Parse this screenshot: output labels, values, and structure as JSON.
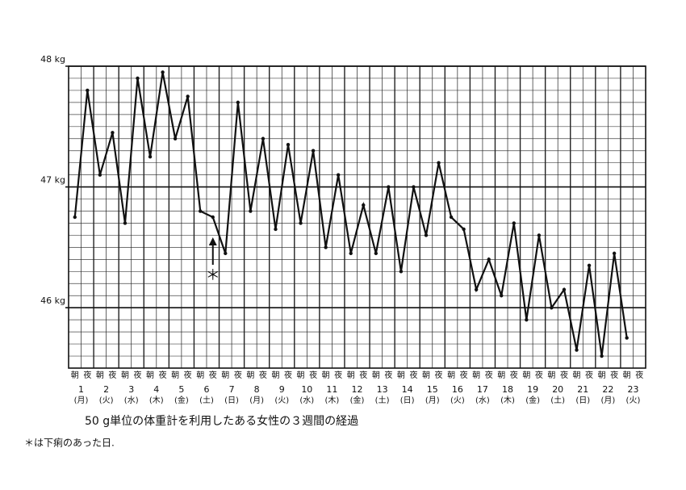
{
  "chart_data": {
    "type": "line",
    "caption": "50 g単位の体重計を利用したある女性の３週間の経過",
    "note": "＊は下痢のあった日.",
    "annotation": "＊",
    "categories": [
      "朝",
      "夜",
      "朝",
      "夜",
      "朝",
      "夜",
      "朝",
      "夜",
      "朝",
      "夜",
      "朝",
      "夜",
      "朝",
      "夜",
      "朝",
      "夜",
      "朝",
      "夜",
      "朝",
      "夜",
      "朝",
      "夜",
      "朝",
      "夜",
      "朝",
      "夜",
      "朝",
      "夜",
      "朝",
      "夜",
      "朝",
      "夜",
      "朝",
      "夜",
      "朝",
      "夜",
      "朝",
      "夜",
      "朝",
      "夜",
      "朝",
      "夜",
      "朝",
      "夜",
      "朝",
      "夜"
    ],
    "days": [
      {
        "day": "1",
        "weekday": "(月)"
      },
      {
        "day": "2",
        "weekday": "(火)"
      },
      {
        "day": "3",
        "weekday": "(水)"
      },
      {
        "day": "4",
        "weekday": "(木)"
      },
      {
        "day": "5",
        "weekday": "(金)"
      },
      {
        "day": "6",
        "weekday": "(土)"
      },
      {
        "day": "7",
        "weekday": "(日)"
      },
      {
        "day": "8",
        "weekday": "(月)"
      },
      {
        "day": "9",
        "weekday": "(火)"
      },
      {
        "day": "10",
        "weekday": "(水)"
      },
      {
        "day": "11",
        "weekday": "(木)"
      },
      {
        "day": "12",
        "weekday": "(金)"
      },
      {
        "day": "13",
        "weekday": "(土)"
      },
      {
        "day": "14",
        "weekday": "(日)"
      },
      {
        "day": "15",
        "weekday": "(月)"
      },
      {
        "day": "16",
        "weekday": "(火)"
      },
      {
        "day": "17",
        "weekday": "(水)"
      },
      {
        "day": "18",
        "weekday": "(木)"
      },
      {
        "day": "19",
        "weekday": "(金)"
      },
      {
        "day": "20",
        "weekday": "(土)"
      },
      {
        "day": "21",
        "weekday": "(日)"
      },
      {
        "day": "22",
        "weekday": "(月)"
      },
      {
        "day": "23",
        "weekday": "(火)"
      }
    ],
    "series": [
      {
        "color": "#111111",
        "values": [
          46.75,
          47.8,
          47.1,
          47.45,
          46.7,
          47.9,
          47.25,
          47.95,
          47.4,
          47.75,
          46.8,
          46.75,
          46.45,
          47.7,
          46.8,
          47.4,
          46.65,
          47.35,
          46.7,
          47.3,
          46.5,
          47.1,
          46.45,
          46.85,
          46.45,
          47.0,
          46.3,
          47.0,
          46.6,
          47.2,
          46.75,
          46.65,
          46.15,
          46.4,
          46.1,
          46.7,
          45.9,
          46.6,
          46.0,
          46.15,
          45.65,
          46.35,
          45.6,
          46.45,
          45.75,
          null
        ]
      }
    ],
    "ylim": [
      45.5,
      48
    ],
    "yticks": [
      {
        "value": 46,
        "label": "46 kg"
      },
      {
        "value": 47,
        "label": "47 kg"
      },
      {
        "value": 48,
        "label": "48 kg"
      }
    ],
    "minor_yticks": [
      45.6,
      45.7,
      45.8,
      45.9,
      46.1,
      46.2,
      46.3,
      46.4,
      46.5,
      46.6,
      46.7,
      46.8,
      46.9,
      47.1,
      47.2,
      47.3,
      47.4,
      47.5,
      47.6,
      47.7,
      47.8,
      47.9
    ],
    "grid": true
  }
}
